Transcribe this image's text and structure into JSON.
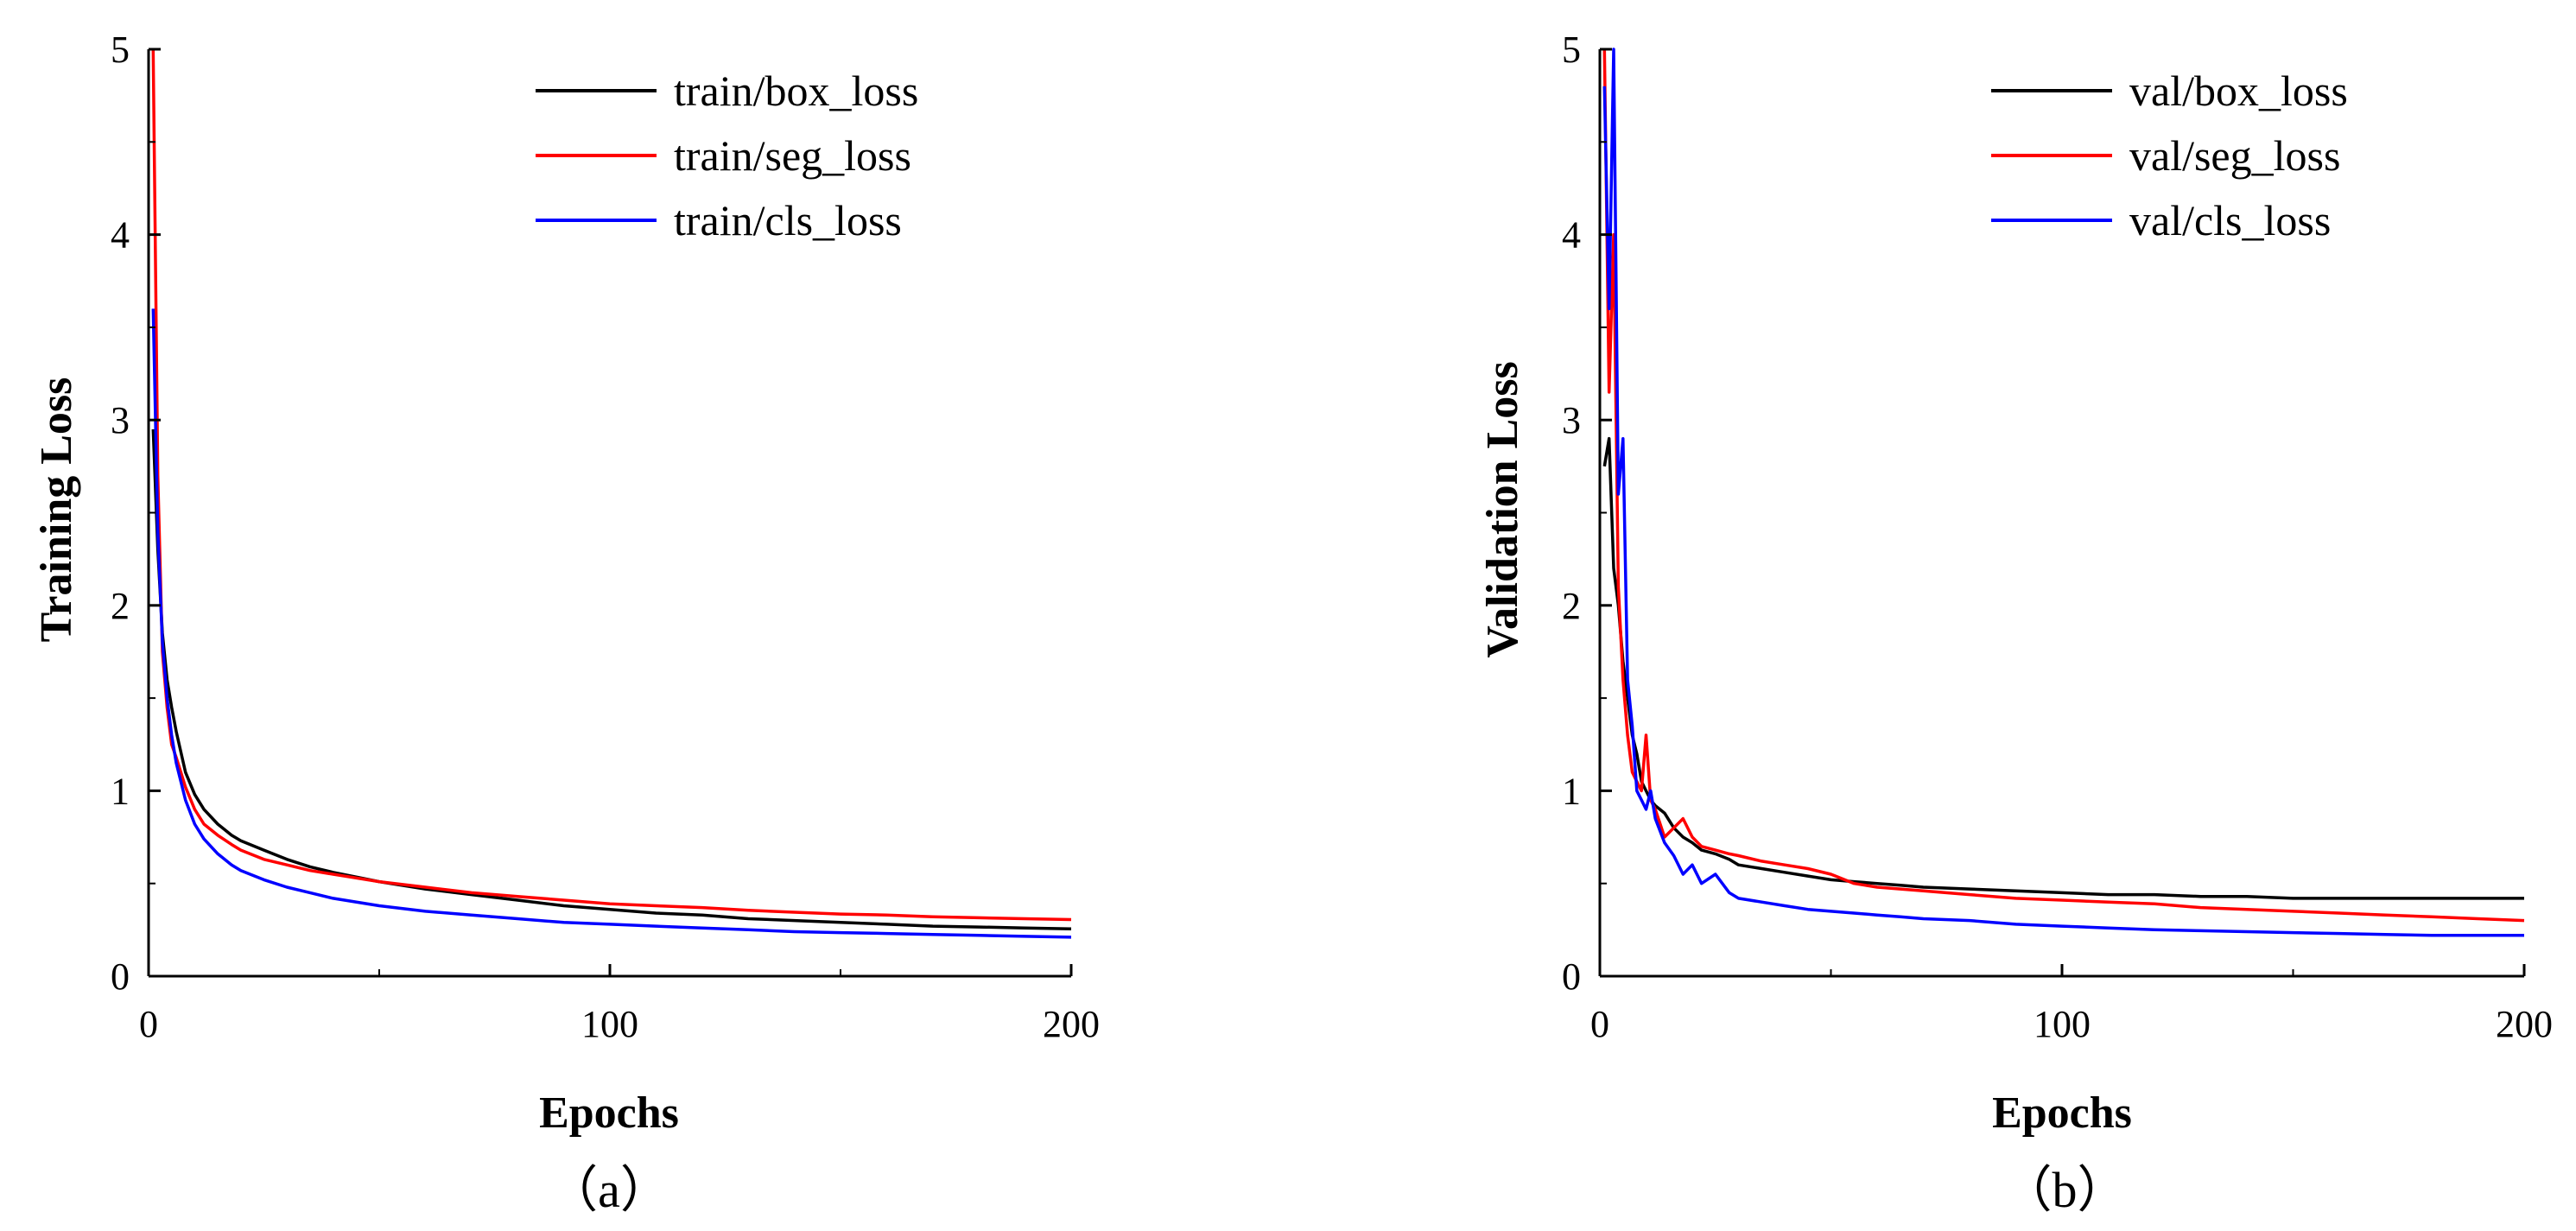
{
  "chart_data": [
    {
      "type": "line",
      "panel_label": "（a）",
      "xlabel": "Epochs",
      "ylabel": "Training Loss",
      "xlim": [
        0,
        200
      ],
      "ylim": [
        0,
        5
      ],
      "xticks": [
        0,
        100,
        200
      ],
      "yticks": [
        0,
        1,
        2,
        3,
        4,
        5
      ],
      "legend_position": "top-right",
      "grid": false,
      "series": [
        {
          "name": "train/box_loss",
          "color": "#000000",
          "x": [
            1,
            2,
            3,
            4,
            5,
            6,
            8,
            10,
            12,
            15,
            18,
            20,
            25,
            30,
            35,
            40,
            50,
            60,
            70,
            80,
            90,
            100,
            110,
            120,
            130,
            140,
            150,
            160,
            170,
            180,
            190,
            200
          ],
          "y": [
            2.95,
            2.3,
            1.85,
            1.6,
            1.45,
            1.32,
            1.1,
            0.98,
            0.9,
            0.82,
            0.76,
            0.73,
            0.68,
            0.63,
            0.59,
            0.56,
            0.51,
            0.47,
            0.44,
            0.41,
            0.38,
            0.36,
            0.34,
            0.33,
            0.31,
            0.3,
            0.29,
            0.28,
            0.27,
            0.265,
            0.26,
            0.255
          ]
        },
        {
          "name": "train/seg_loss",
          "color": "#ff0000",
          "x": [
            1,
            2,
            3,
            4,
            5,
            6,
            8,
            10,
            12,
            15,
            18,
            20,
            25,
            30,
            35,
            40,
            50,
            60,
            70,
            80,
            90,
            100,
            110,
            120,
            130,
            140,
            150,
            160,
            170,
            180,
            190,
            200
          ],
          "y": [
            5.0,
            2.7,
            1.75,
            1.45,
            1.25,
            1.18,
            1.02,
            0.9,
            0.82,
            0.76,
            0.71,
            0.68,
            0.63,
            0.6,
            0.57,
            0.55,
            0.51,
            0.48,
            0.45,
            0.43,
            0.41,
            0.39,
            0.38,
            0.37,
            0.355,
            0.345,
            0.335,
            0.33,
            0.32,
            0.315,
            0.31,
            0.305
          ]
        },
        {
          "name": "train/cls_loss",
          "color": "#0000ff",
          "x": [
            1,
            2,
            3,
            4,
            5,
            6,
            8,
            10,
            12,
            15,
            18,
            20,
            25,
            30,
            35,
            40,
            50,
            60,
            70,
            80,
            90,
            100,
            110,
            120,
            130,
            140,
            150,
            160,
            170,
            180,
            190,
            200
          ],
          "y": [
            3.6,
            2.4,
            1.8,
            1.5,
            1.3,
            1.15,
            0.95,
            0.82,
            0.74,
            0.66,
            0.6,
            0.57,
            0.52,
            0.48,
            0.45,
            0.42,
            0.38,
            0.35,
            0.33,
            0.31,
            0.29,
            0.28,
            0.27,
            0.26,
            0.25,
            0.24,
            0.235,
            0.23,
            0.225,
            0.22,
            0.215,
            0.21
          ]
        }
      ]
    },
    {
      "type": "line",
      "panel_label": "（b）",
      "xlabel": "Epochs",
      "ylabel": "Validation Loss",
      "xlim": [
        0,
        200
      ],
      "ylim": [
        0,
        5
      ],
      "xticks": [
        0,
        100,
        200
      ],
      "yticks": [
        0,
        1,
        2,
        3,
        4,
        5
      ],
      "legend_position": "top-right",
      "grid": false,
      "series": [
        {
          "name": "val/box_loss",
          "color": "#000000",
          "x": [
            1,
            2,
            3,
            4,
            5,
            6,
            7,
            8,
            9,
            10,
            11,
            12,
            14,
            16,
            18,
            20,
            22,
            25,
            28,
            30,
            35,
            40,
            45,
            50,
            55,
            60,
            65,
            70,
            80,
            90,
            100,
            110,
            120,
            130,
            140,
            150,
            160,
            170,
            180,
            190,
            200
          ],
          "y": [
            2.75,
            2.9,
            2.2,
            2.0,
            1.7,
            1.5,
            1.3,
            1.2,
            1.05,
            1.0,
            0.95,
            0.92,
            0.88,
            0.8,
            0.75,
            0.72,
            0.68,
            0.66,
            0.63,
            0.6,
            0.58,
            0.56,
            0.54,
            0.52,
            0.51,
            0.5,
            0.49,
            0.48,
            0.47,
            0.46,
            0.45,
            0.44,
            0.44,
            0.43,
            0.43,
            0.42,
            0.42,
            0.42,
            0.42,
            0.42,
            0.42
          ]
        },
        {
          "name": "val/seg_loss",
          "color": "#ff0000",
          "x": [
            1,
            2,
            3,
            4,
            5,
            6,
            7,
            8,
            9,
            10,
            11,
            12,
            14,
            16,
            18,
            20,
            22,
            25,
            28,
            30,
            35,
            40,
            45,
            50,
            55,
            60,
            65,
            70,
            80,
            90,
            100,
            110,
            120,
            130,
            140,
            150,
            160,
            170,
            180,
            190,
            200
          ],
          "y": [
            5.0,
            3.15,
            4.0,
            2.1,
            1.6,
            1.3,
            1.1,
            1.05,
            1.0,
            1.3,
            0.95,
            0.9,
            0.75,
            0.8,
            0.85,
            0.75,
            0.7,
            0.68,
            0.66,
            0.65,
            0.62,
            0.6,
            0.58,
            0.55,
            0.5,
            0.48,
            0.47,
            0.46,
            0.44,
            0.42,
            0.41,
            0.4,
            0.39,
            0.37,
            0.36,
            0.35,
            0.34,
            0.33,
            0.32,
            0.31,
            0.3
          ]
        },
        {
          "name": "val/cls_loss",
          "color": "#0000ff",
          "x": [
            1,
            2,
            3,
            4,
            5,
            6,
            7,
            8,
            9,
            10,
            11,
            12,
            14,
            16,
            18,
            20,
            22,
            25,
            28,
            30,
            35,
            40,
            45,
            50,
            55,
            60,
            65,
            70,
            80,
            90,
            100,
            110,
            120,
            130,
            140,
            150,
            160,
            170,
            180,
            190,
            200
          ],
          "y": [
            4.8,
            3.6,
            5.0,
            2.6,
            2.9,
            1.6,
            1.35,
            1.0,
            0.95,
            0.9,
            1.0,
            0.85,
            0.72,
            0.65,
            0.55,
            0.6,
            0.5,
            0.55,
            0.45,
            0.42,
            0.4,
            0.38,
            0.36,
            0.35,
            0.34,
            0.33,
            0.32,
            0.31,
            0.3,
            0.28,
            0.27,
            0.26,
            0.25,
            0.245,
            0.24,
            0.235,
            0.23,
            0.225,
            0.22,
            0.22,
            0.22
          ]
        }
      ]
    }
  ]
}
